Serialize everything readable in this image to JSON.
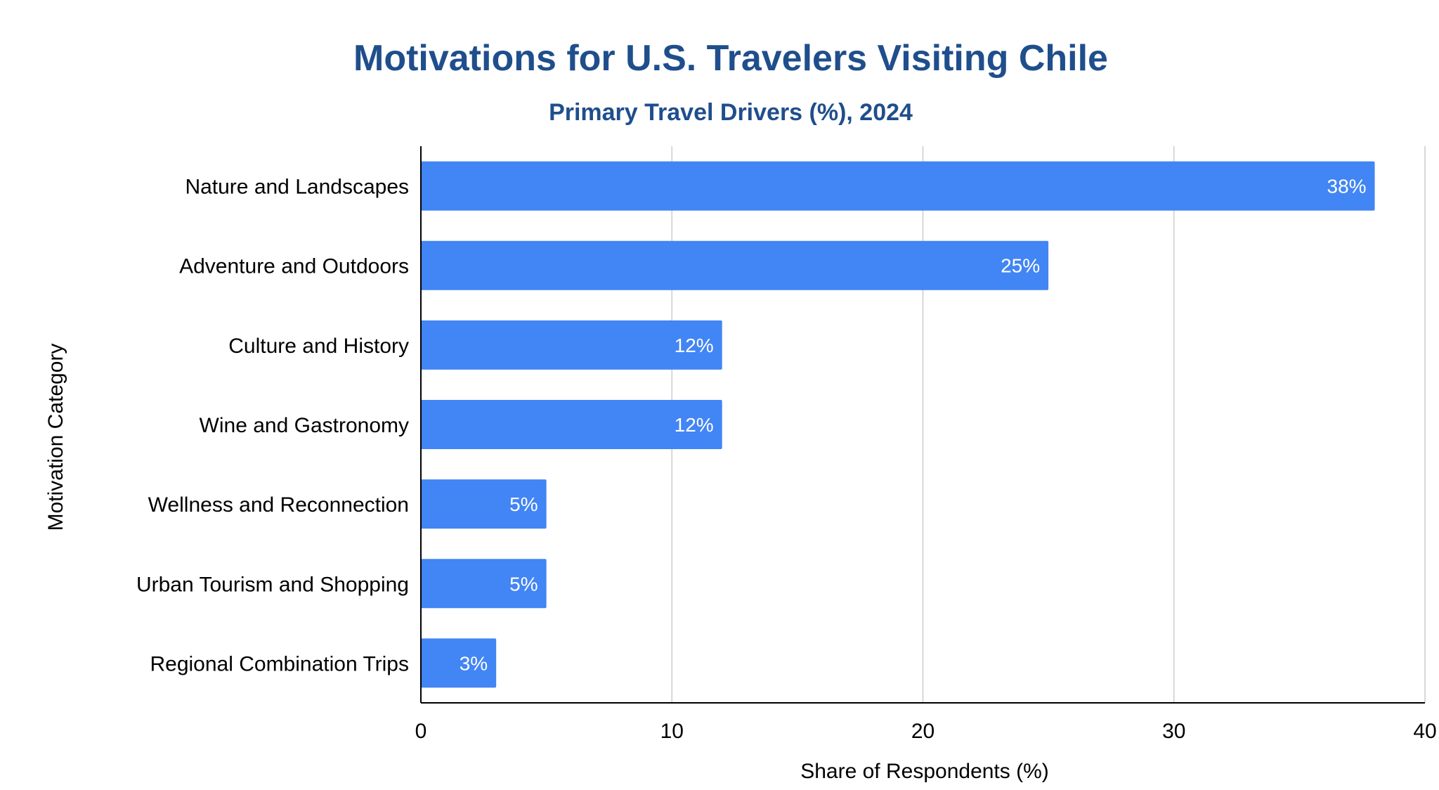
{
  "chart_data": {
    "type": "bar",
    "orientation": "horizontal",
    "title": "Motivations for U.S. Travelers Visiting Chile",
    "subtitle": "Primary Travel Drivers (%), 2024",
    "xlabel": "Share of Respondents (%)",
    "ylabel": "Motivation Category",
    "categories": [
      "Nature and Landscapes",
      "Adventure and Outdoors",
      "Culture and History",
      "Wine and Gastronomy",
      "Wellness and Reconnection",
      "Urban Tourism and Shopping",
      "Regional Combination Trips"
    ],
    "values": [
      38,
      25,
      12,
      12,
      5,
      5,
      3
    ],
    "value_labels": [
      "38%",
      "25%",
      "12%",
      "12%",
      "5%",
      "5%",
      "3%"
    ],
    "xlim": [
      0,
      40
    ],
    "xticks": [
      0,
      10,
      20,
      30,
      40
    ],
    "grid": true,
    "bar_color": "#4285f4",
    "title_color": "#1f4e8c",
    "grid_color": "#cccccc",
    "axis_color": "#000000"
  }
}
